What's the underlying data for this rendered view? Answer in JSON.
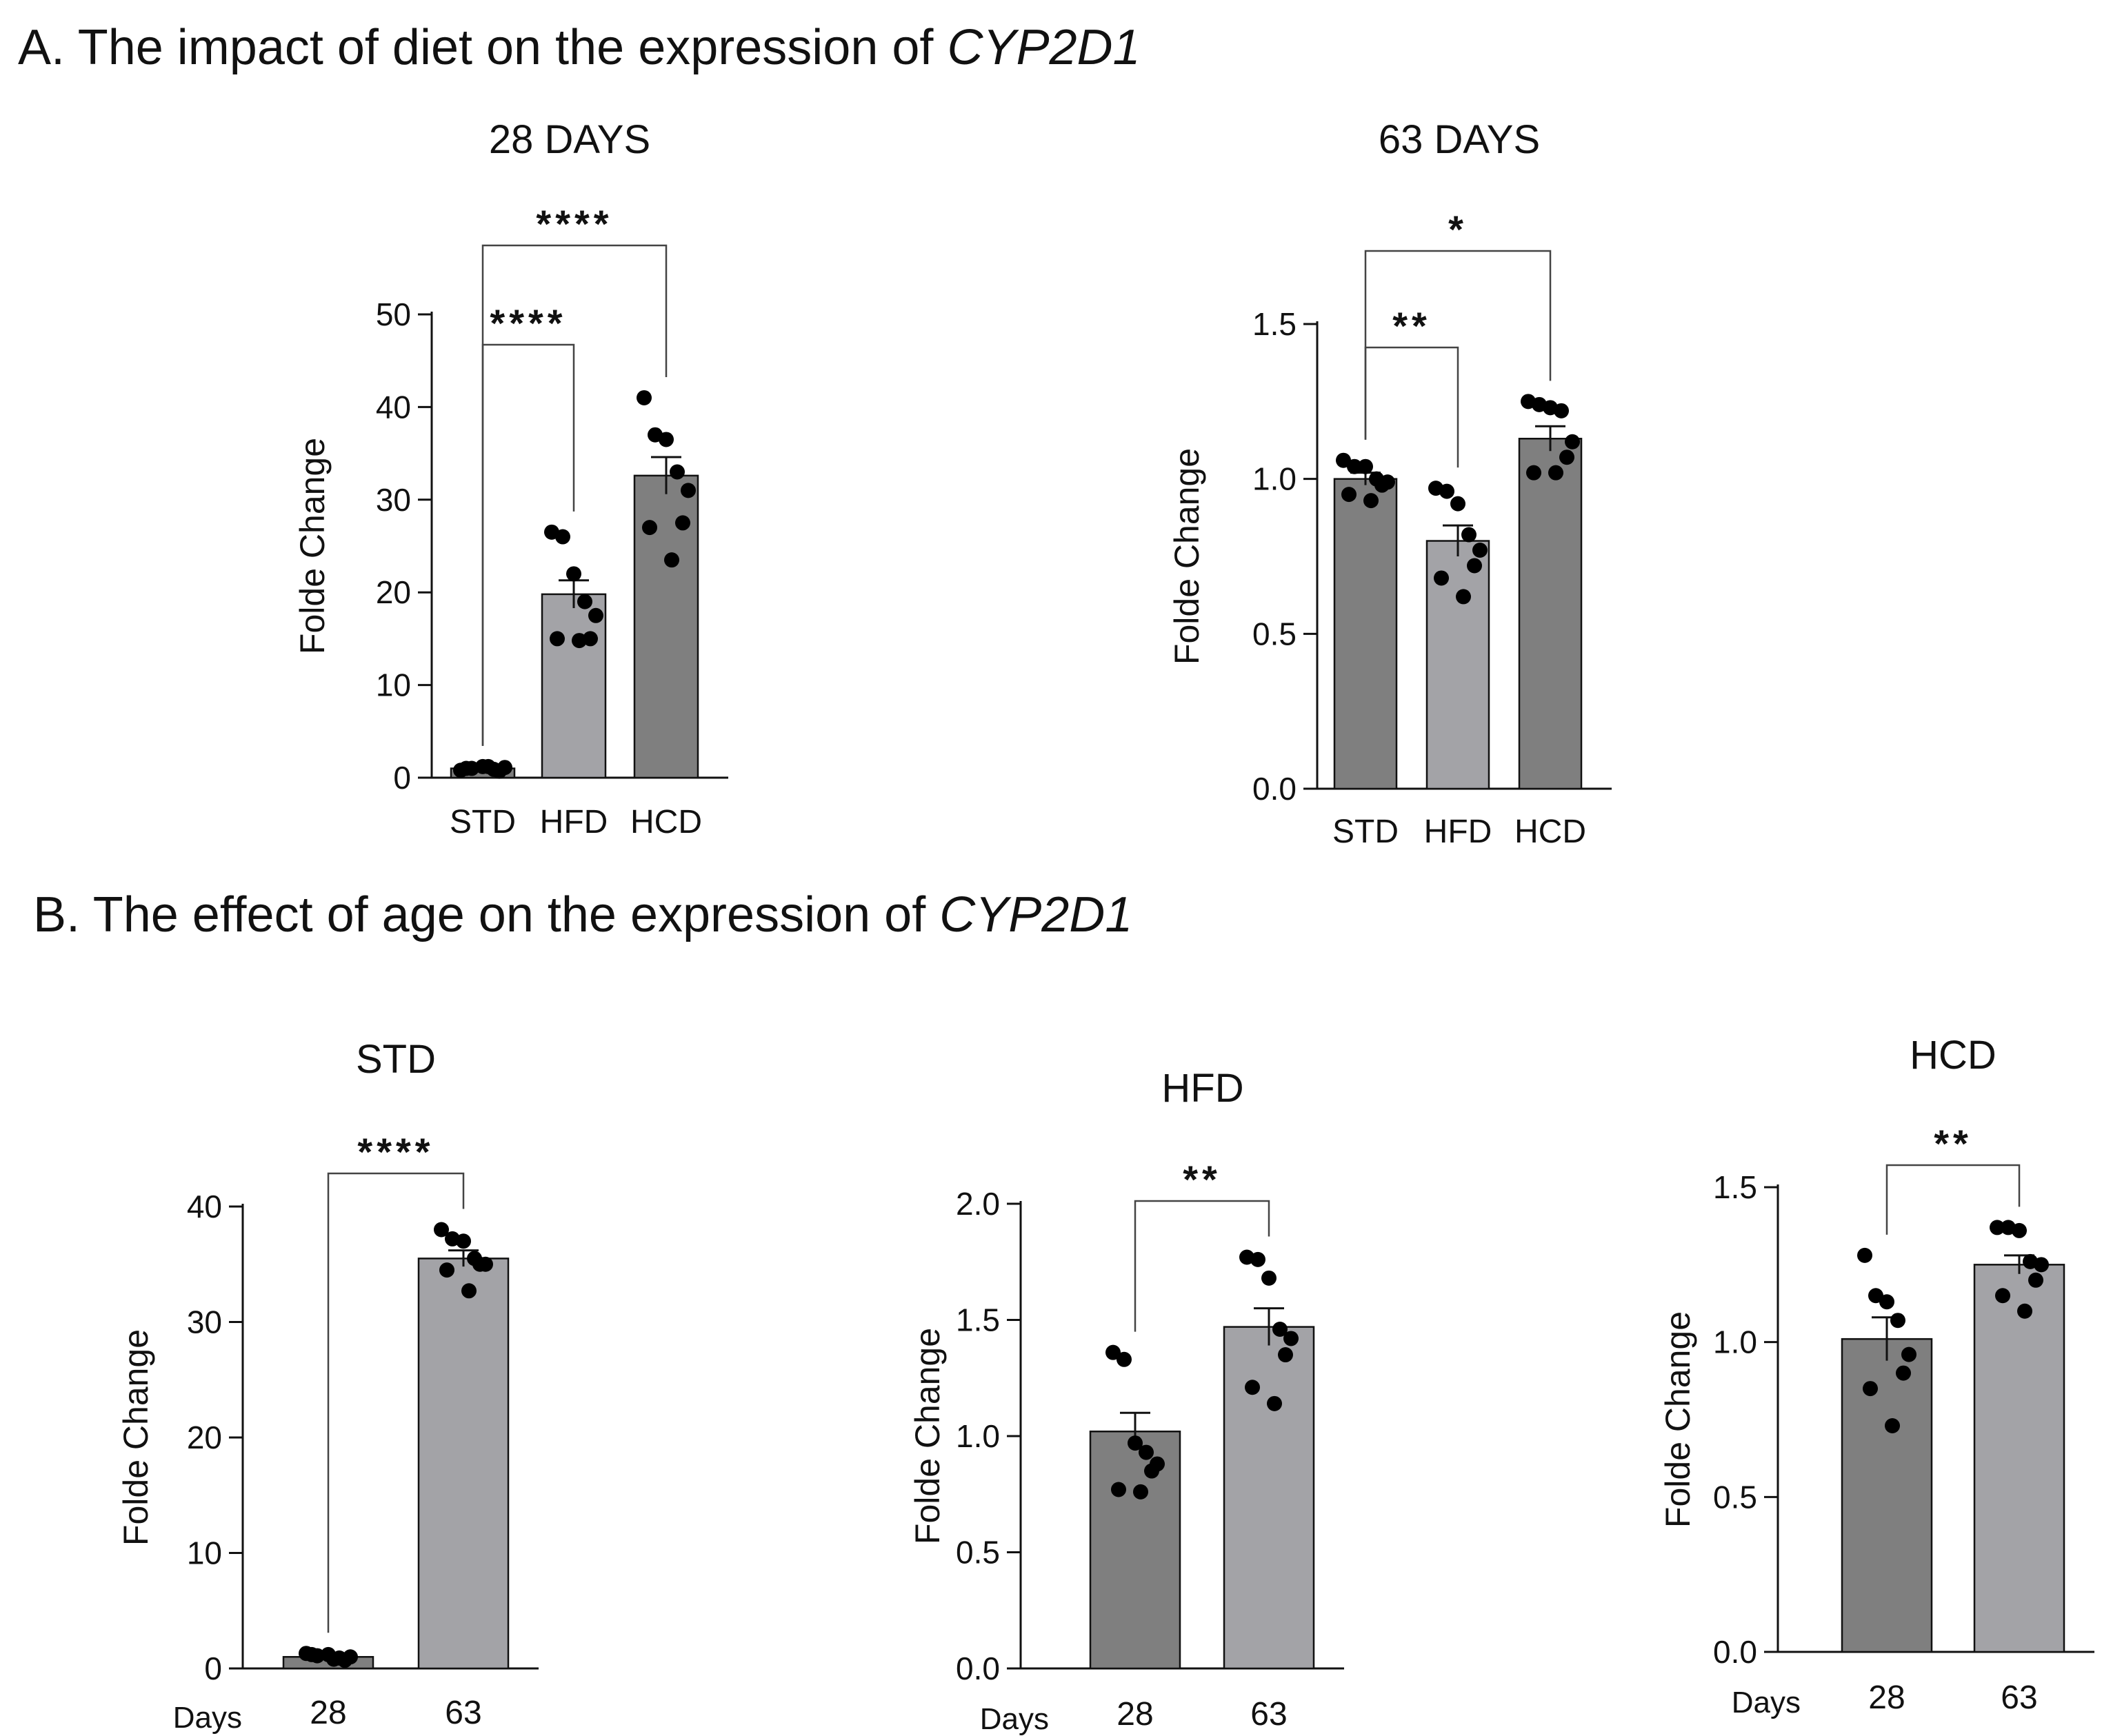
{
  "headings": {
    "a": {
      "prefix": "A. The impact of diet on the expression of ",
      "gene": "CYP2D1"
    },
    "b": {
      "prefix": "B. The effect of age on the expression of ",
      "gene": "CYP2D1"
    }
  },
  "colors": {
    "dark_bar": "#7f7f7f",
    "light_bar": "#a3a3a7",
    "points": "#000000",
    "axis": "#111111"
  },
  "chart_data": [
    {
      "id": "a28",
      "type": "bar",
      "title": "28 DAYS",
      "xlabel": "",
      "ylabel": "Folde Change",
      "categories": [
        "STD",
        "HFD",
        "HCD"
      ],
      "values": [
        1.0,
        19.8,
        32.6
      ],
      "sem": [
        0.1,
        1.5,
        2.0
      ],
      "bar_colors": [
        "#7f7f7f",
        "#a3a3a7",
        "#7f7f7f"
      ],
      "points": [
        [
          0.8,
          1.0,
          1.2,
          0.9,
          1.1,
          0.7,
          1.0,
          1.2
        ],
        [
          26.5,
          26.0,
          22.0,
          19.0,
          17.5,
          15.0,
          15.0,
          14.8
        ],
        [
          41.0,
          37.0,
          36.5,
          33.0,
          31.0,
          27.5,
          27.0,
          23.5
        ]
      ],
      "ylim": [
        0,
        50
      ],
      "yticks": [
        0,
        10,
        20,
        30,
        40,
        50
      ],
      "ytick_labels": [
        "0",
        "10",
        "20",
        "30",
        "40",
        "50"
      ],
      "significance": [
        {
          "from": 0,
          "to": 2,
          "label": "****"
        },
        {
          "from": 0,
          "to": 1,
          "label": "****"
        }
      ]
    },
    {
      "id": "a63",
      "type": "bar",
      "title": "63 DAYS",
      "xlabel": "",
      "ylabel": "Folde Change",
      "categories": [
        "STD",
        "HFD",
        "HCD"
      ],
      "values": [
        1.0,
        0.8,
        1.13
      ],
      "sem": [
        0.02,
        0.05,
        0.04
      ],
      "bar_colors": [
        "#7f7f7f",
        "#a3a3a7",
        "#7f7f7f"
      ],
      "points": [
        [
          1.06,
          1.04,
          1.04,
          1.0,
          0.99,
          0.98,
          0.95,
          0.93
        ],
        [
          0.97,
          0.96,
          0.92,
          0.82,
          0.77,
          0.72,
          0.68,
          0.62
        ],
        [
          1.25,
          1.24,
          1.23,
          1.22,
          1.12,
          1.07,
          1.02,
          1.02
        ]
      ],
      "ylim": [
        0,
        1.5
      ],
      "yticks": [
        0,
        0.5,
        1.0,
        1.5
      ],
      "ytick_labels": [
        "0.0",
        "0.5",
        "1.0",
        "1.5"
      ],
      "significance": [
        {
          "from": 0,
          "to": 2,
          "label": "*"
        },
        {
          "from": 0,
          "to": 1,
          "label": "**"
        }
      ]
    },
    {
      "id": "bstd",
      "type": "bar",
      "title": "STD",
      "xlabel": "Days",
      "ylabel": "Folde Change",
      "categories": [
        "28",
        "63"
      ],
      "values": [
        1.0,
        35.5
      ],
      "sem": [
        0.1,
        0.7
      ],
      "bar_colors": [
        "#7f7f7f",
        "#a3a3a7"
      ],
      "points": [
        [
          1.3,
          1.1,
          1.2,
          0.9,
          1.0,
          0.7,
          1.2,
          0.8
        ],
        [
          38.0,
          37.2,
          37.0,
          35.5,
          35.0,
          35.0,
          34.5,
          32.7
        ]
      ],
      "ylim": [
        0,
        40
      ],
      "yticks": [
        0,
        10,
        20,
        30,
        40
      ],
      "ytick_labels": [
        "0",
        "10",
        "20",
        "30",
        "40"
      ],
      "significance": [
        {
          "from": 0,
          "to": 1,
          "label": "****"
        }
      ]
    },
    {
      "id": "bhfd",
      "type": "bar",
      "title": "HFD",
      "xlabel": "Days",
      "ylabel": "Folde Change",
      "categories": [
        "28",
        "63"
      ],
      "values": [
        1.02,
        1.47
      ],
      "sem": [
        0.08,
        0.08
      ],
      "bar_colors": [
        "#7f7f7f",
        "#a3a3a7"
      ],
      "points": [
        [
          1.36,
          1.33,
          0.97,
          0.93,
          0.88,
          0.85,
          0.77,
          0.76
        ],
        [
          1.77,
          1.76,
          1.68,
          1.46,
          1.42,
          1.35,
          1.21,
          1.14
        ]
      ],
      "ylim": [
        0,
        2.0
      ],
      "yticks": [
        0,
        0.5,
        1.0,
        1.5,
        2.0
      ],
      "ytick_labels": [
        "0.0",
        "0.5",
        "1.0",
        "1.5",
        "2.0"
      ],
      "significance": [
        {
          "from": 0,
          "to": 1,
          "label": "**"
        }
      ]
    },
    {
      "id": "bhcd",
      "type": "bar",
      "title": "HCD",
      "xlabel": "Days",
      "ylabel": "Folde Change",
      "categories": [
        "28",
        "63"
      ],
      "values": [
        1.01,
        1.25
      ],
      "sem": [
        0.07,
        0.03
      ],
      "bar_colors": [
        "#7f7f7f",
        "#a3a3a7"
      ],
      "points": [
        [
          1.28,
          1.15,
          1.13,
          1.07,
          0.96,
          0.9,
          0.85,
          0.73
        ],
        [
          1.37,
          1.37,
          1.36,
          1.26,
          1.25,
          1.2,
          1.15,
          1.1
        ]
      ],
      "ylim": [
        0,
        1.5
      ],
      "yticks": [
        0,
        0.5,
        1.0,
        1.5
      ],
      "ytick_labels": [
        "0.0",
        "0.5",
        "1.0",
        "1.5"
      ],
      "significance": [
        {
          "from": 0,
          "to": 1,
          "label": "**"
        }
      ]
    }
  ]
}
